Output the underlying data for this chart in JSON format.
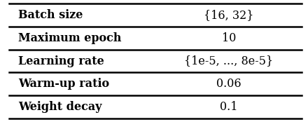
{
  "rows": [
    {
      "label": "Batch size",
      "value": "{16, 32}"
    },
    {
      "label": "Maximum epoch",
      "value": "10"
    },
    {
      "label": "Learning rate",
      "value": "{1e-5, ..., 8e-5}"
    },
    {
      "label": "Warm-up ratio",
      "value": "0.06"
    },
    {
      "label": "Weight decay",
      "value": "0.1"
    }
  ],
  "bg_color": "#ffffff",
  "line_color": "#000000",
  "text_color": "#000000",
  "label_fontsize": 11.5,
  "value_fontsize": 11.5,
  "fig_width": 4.4,
  "fig_height": 1.74,
  "dpi": 100
}
